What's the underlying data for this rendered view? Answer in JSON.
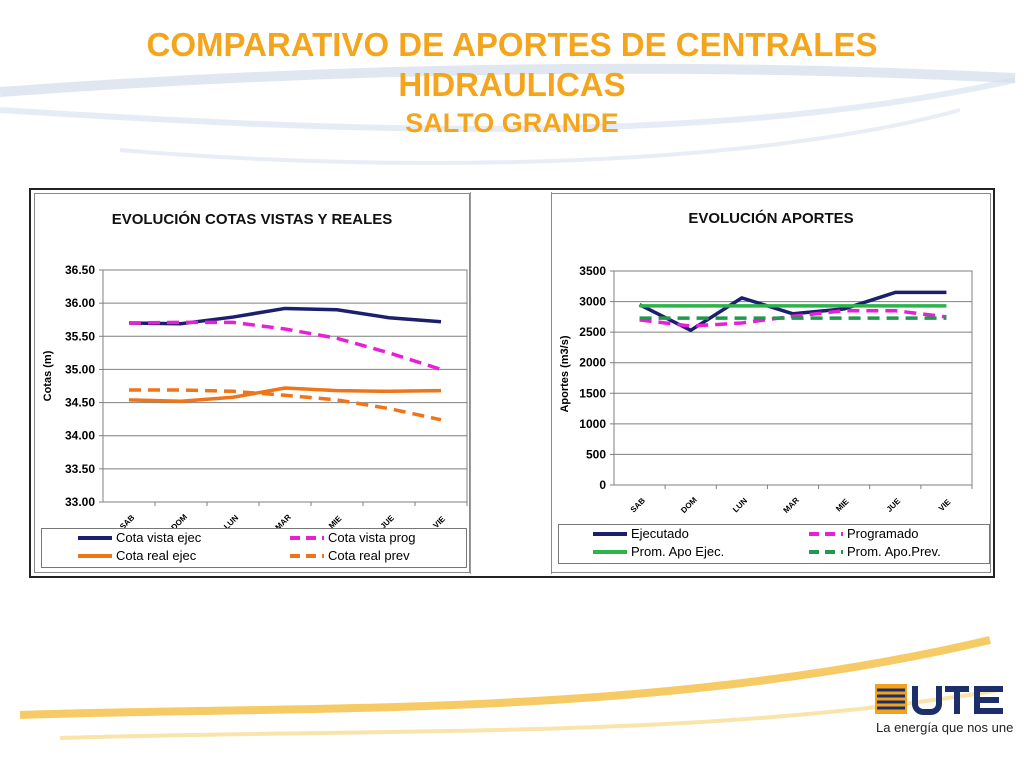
{
  "slide": {
    "title_line1": "COMPARATIVO DE APORTES DE CENTRALES",
    "title_line2": "HIDRAULICAS",
    "subtitle": "SALTO GRANDE",
    "accent_color": "#f4a51c",
    "logo_text": "UTE",
    "slogan": "La energía que nos une"
  },
  "chart_data": [
    {
      "type": "line",
      "title": "EVOLUCIÓN  COTAS VISTAS Y REALES",
      "xlabel": "",
      "ylabel": "Cotas (m)",
      "categories": [
        "SAB",
        "DOM",
        "LUN",
        "MAR",
        "MIE",
        "JUE",
        "VIE"
      ],
      "ylim": [
        33.0,
        36.5
      ],
      "yticks": [
        "33.00",
        "33.50",
        "34.00",
        "34.50",
        "35.00",
        "35.50",
        "36.00",
        "36.50"
      ],
      "grid": true,
      "legend_position": "bottom",
      "series": [
        {
          "name": "Cota vista ejec",
          "values": [
            35.7,
            35.69,
            35.79,
            35.92,
            35.9,
            35.78,
            35.72
          ],
          "color": "#1b1f6e",
          "dash": false
        },
        {
          "name": "Cota vista prog",
          "values": [
            35.7,
            35.71,
            35.71,
            35.61,
            35.47,
            35.25,
            35.0
          ],
          "color": "#e81fd6",
          "dash": true
        },
        {
          "name": "Cota real ejec",
          "values": [
            34.54,
            34.52,
            34.58,
            34.72,
            34.68,
            34.67,
            34.68
          ],
          "color": "#f07418",
          "dash": false
        },
        {
          "name": "Cota real prev",
          "values": [
            34.69,
            34.69,
            34.67,
            34.61,
            34.54,
            34.41,
            34.24
          ],
          "color": "#f07418",
          "dash": true
        }
      ]
    },
    {
      "type": "line",
      "title": "EVOLUCIÓN  APORTES",
      "xlabel": "",
      "ylabel": "Aportes (m3/s)",
      "categories": [
        "SAB",
        "DOM",
        "LUN",
        "MAR",
        "MIE",
        "JUE",
        "VIE"
      ],
      "ylim": [
        0,
        3500
      ],
      "yticks": [
        "0",
        "500",
        "1000",
        "1500",
        "2000",
        "2500",
        "3000",
        "3500"
      ],
      "grid": true,
      "legend_position": "bottom",
      "series": [
        {
          "name": "Ejecutado",
          "values": [
            2950,
            2530,
            3060,
            2800,
            2880,
            3150,
            3150
          ],
          "color": "#1b1f6e",
          "dash": false
        },
        {
          "name": "Programado",
          "values": [
            2700,
            2600,
            2650,
            2760,
            2850,
            2850,
            2750
          ],
          "color": "#e81fd6",
          "dash": true
        },
        {
          "name": "Prom. Apo Ejec.",
          "values": [
            2930,
            2930,
            2930,
            2930,
            2930,
            2930,
            2930
          ],
          "color": "#2cb34a",
          "dash": false
        },
        {
          "name": "Prom. Apo.Prev.",
          "values": [
            2730,
            2730,
            2730,
            2730,
            2730,
            2730,
            2730
          ],
          "color": "#1f9a4a",
          "dash": true
        }
      ]
    }
  ]
}
